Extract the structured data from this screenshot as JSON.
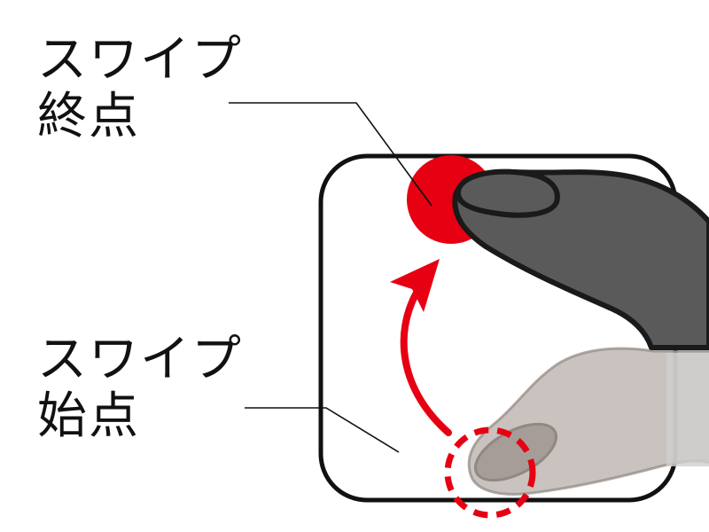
{
  "labels": {
    "end": {
      "line1": "スワイプ",
      "line2": "終点"
    },
    "start": {
      "line1": "スワイプ",
      "line2": "始点"
    }
  },
  "colors": {
    "accent_red": "#e60012",
    "finger_dark": "#585858",
    "finger_light": "#a39a95",
    "outline": "#1a1a1a",
    "background": "#ffffff"
  },
  "icons": {
    "end_marker": "red-filled-circle",
    "start_marker": "red-dashed-circle",
    "direction": "curved-up-arrow"
  }
}
